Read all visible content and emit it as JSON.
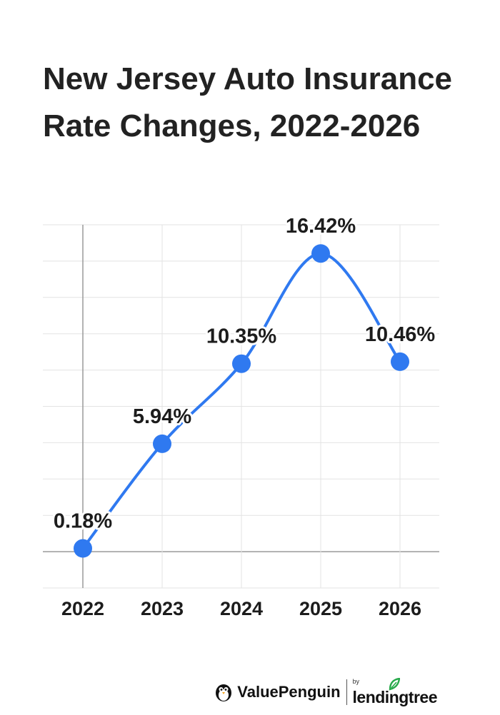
{
  "title": {
    "line1": "New Jersey Auto Insurance",
    "line2": "Rate Changes, 2022-2026"
  },
  "chart_data": {
    "type": "line",
    "title": "New Jersey Auto Insurance Rate Changes, 2022-2026",
    "xlabel": "",
    "ylabel": "",
    "categories": [
      "2022",
      "2023",
      "2024",
      "2025",
      "2026"
    ],
    "series": [
      {
        "values": [
          0.18,
          5.94,
          10.35,
          16.42,
          10.46
        ],
        "labels": [
          "0.18%",
          "5.94%",
          "10.35%",
          "16.42%",
          "10.46%"
        ]
      }
    ],
    "ylim": [
      -2,
      18
    ],
    "grid": true,
    "smooth": true,
    "line_color": "#2f79f0",
    "marker_color": "#2f79f0"
  },
  "footer": {
    "brand": "ValuePenguin",
    "by": "by",
    "partner": "lendingtree",
    "partner_accent": "#27a94a"
  }
}
